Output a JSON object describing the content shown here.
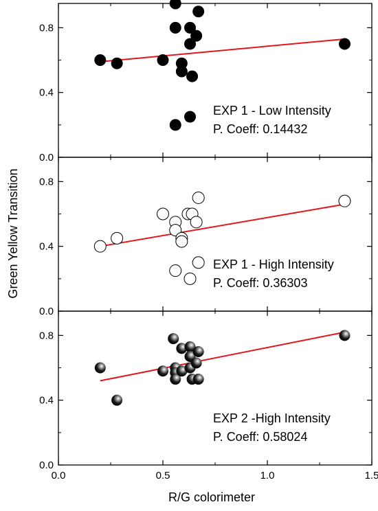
{
  "chart_data": {
    "type": "scatter",
    "xlabel": "R/G colorimeter",
    "ylabel": "Green Yellow Transition",
    "xlim": [
      0.0,
      1.5
    ],
    "ylim": [
      0.0,
      0.95
    ],
    "xticks": [
      "0.0",
      "0.5",
      "1.0",
      "1.5"
    ],
    "yticks": [
      "0.0",
      "0.4",
      "0.8"
    ],
    "grid": false,
    "panels": [
      {
        "marker": "filled",
        "annotation": [
          "EXP 1 - Low Intensity",
          "P. Coeff: 0.14432"
        ],
        "fit": {
          "x": [
            0.2,
            1.37
          ],
          "y": [
            0.59,
            0.73
          ]
        },
        "points": [
          {
            "x": 0.2,
            "y": 0.6
          },
          {
            "x": 0.28,
            "y": 0.58
          },
          {
            "x": 0.5,
            "y": 0.6
          },
          {
            "x": 0.56,
            "y": 0.95
          },
          {
            "x": 0.56,
            "y": 0.8
          },
          {
            "x": 0.56,
            "y": 0.2
          },
          {
            "x": 0.59,
            "y": 0.58
          },
          {
            "x": 0.59,
            "y": 0.53
          },
          {
            "x": 0.63,
            "y": 0.8
          },
          {
            "x": 0.63,
            "y": 0.7
          },
          {
            "x": 0.64,
            "y": 0.5
          },
          {
            "x": 0.63,
            "y": 0.25
          },
          {
            "x": 0.66,
            "y": 0.75
          },
          {
            "x": 0.67,
            "y": 0.9
          },
          {
            "x": 1.37,
            "y": 0.7
          }
        ]
      },
      {
        "marker": "open",
        "annotation": [
          "EXP 1 - High Intensity",
          "P. Coeff: 0.36303"
        ],
        "fit": {
          "x": [
            0.2,
            1.37
          ],
          "y": [
            0.4,
            0.66
          ]
        },
        "points": [
          {
            "x": 0.2,
            "y": 0.4
          },
          {
            "x": 0.28,
            "y": 0.45
          },
          {
            "x": 0.5,
            "y": 0.6
          },
          {
            "x": 0.56,
            "y": 0.55
          },
          {
            "x": 0.56,
            "y": 0.5
          },
          {
            "x": 0.56,
            "y": 0.25
          },
          {
            "x": 0.59,
            "y": 0.45
          },
          {
            "x": 0.59,
            "y": 0.43
          },
          {
            "x": 0.62,
            "y": 0.6
          },
          {
            "x": 0.64,
            "y": 0.6
          },
          {
            "x": 0.66,
            "y": 0.55
          },
          {
            "x": 0.63,
            "y": 0.2
          },
          {
            "x": 0.67,
            "y": 0.3
          },
          {
            "x": 0.67,
            "y": 0.7
          },
          {
            "x": 1.37,
            "y": 0.68
          }
        ]
      },
      {
        "marker": "shaded",
        "annotation": [
          "EXP 2 -High Intensity",
          "P. Coeff: 0.58024"
        ],
        "fit": {
          "x": [
            0.2,
            1.37
          ],
          "y": [
            0.52,
            0.82
          ]
        },
        "points": [
          {
            "x": 0.2,
            "y": 0.6
          },
          {
            "x": 0.28,
            "y": 0.4
          },
          {
            "x": 0.5,
            "y": 0.58
          },
          {
            "x": 0.55,
            "y": 0.78
          },
          {
            "x": 0.56,
            "y": 0.6
          },
          {
            "x": 0.56,
            "y": 0.57
          },
          {
            "x": 0.56,
            "y": 0.53
          },
          {
            "x": 0.59,
            "y": 0.72
          },
          {
            "x": 0.59,
            "y": 0.58
          },
          {
            "x": 0.63,
            "y": 0.73
          },
          {
            "x": 0.63,
            "y": 0.67
          },
          {
            "x": 0.63,
            "y": 0.6
          },
          {
            "x": 0.64,
            "y": 0.53
          },
          {
            "x": 0.66,
            "y": 0.63
          },
          {
            "x": 0.67,
            "y": 0.7
          },
          {
            "x": 0.67,
            "y": 0.53
          },
          {
            "x": 1.37,
            "y": 0.8
          }
        ]
      }
    ]
  },
  "colors": {
    "fit_line": "#e8141b",
    "marker": "#000000",
    "frame": "#000000"
  }
}
